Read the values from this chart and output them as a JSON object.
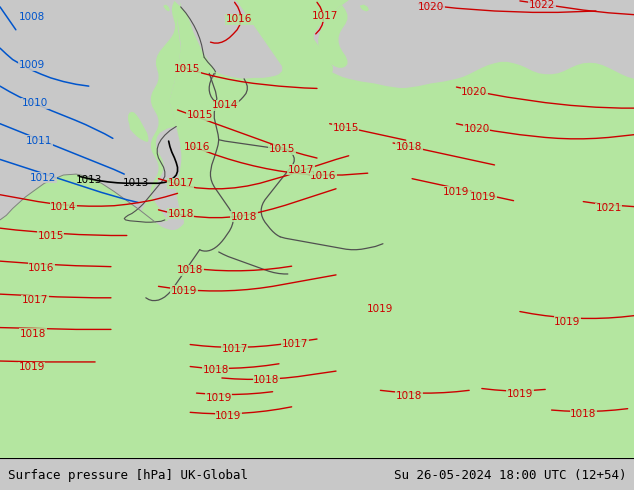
{
  "title_left": "Surface pressure [hPa] UK-Global",
  "title_right": "Su 26-05-2024 18:00 UTC (12+54)",
  "sea_color": "#c8c8c8",
  "land_color": "#b4e6a0",
  "border_color": "#505050",
  "coast_color": "#808080",
  "red_color": "#cc0000",
  "blue_color": "#0055cc",
  "black_color": "#000000",
  "figsize": [
    6.34,
    4.9
  ],
  "dpi": 100,
  "bottom_bar_color": "#ffffff",
  "font_size_title": 9
}
